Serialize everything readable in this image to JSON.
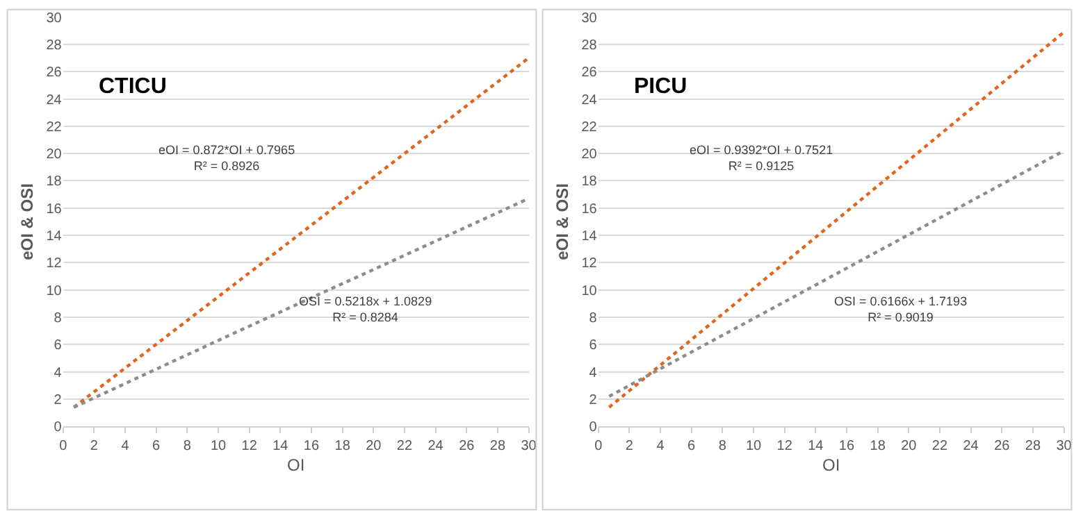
{
  "chart_data": [
    {
      "type": "line",
      "title": "CTICU",
      "xlabel": "OI",
      "ylabel": "eOI & OSI",
      "xlim": [
        0,
        30
      ],
      "ylim": [
        0,
        30
      ],
      "xticks": [
        0,
        2,
        4,
        6,
        8,
        10,
        12,
        14,
        16,
        18,
        20,
        22,
        24,
        26,
        28,
        30
      ],
      "yticks": [
        0,
        2,
        4,
        6,
        8,
        10,
        12,
        14,
        16,
        18,
        20,
        22,
        24,
        26,
        28,
        30
      ],
      "grid": "y",
      "marker": "none",
      "line_style": "dotted",
      "series": [
        {
          "color": "#e0651e",
          "x": [
            0.7,
            10,
            30
          ],
          "values": [
            1.4,
            9.5,
            27.0
          ]
        },
        {
          "color": "#8c8c8c",
          "x": [
            0.7,
            10,
            30
          ],
          "values": [
            1.4,
            6.3,
            16.7
          ]
        }
      ],
      "annotations": [
        "eOI = 0.872*OI + 0.7965\nR² = 0.8926",
        "OSI = 0.5218x + 1.0829\nR² = 0.8284"
      ]
    },
    {
      "type": "line",
      "title": "PICU",
      "xlabel": "OI",
      "ylabel": "eOI & OSI",
      "xlim": [
        0,
        30
      ],
      "ylim": [
        0,
        30
      ],
      "xticks": [
        0,
        2,
        4,
        6,
        8,
        10,
        12,
        14,
        16,
        18,
        20,
        22,
        24,
        26,
        28,
        30
      ],
      "yticks": [
        0,
        2,
        4,
        6,
        8,
        10,
        12,
        14,
        16,
        18,
        20,
        22,
        24,
        26,
        28,
        30
      ],
      "grid": "y",
      "marker": "none",
      "line_style": "dotted",
      "series": [
        {
          "color": "#e0651e",
          "x": [
            0.7,
            10,
            30
          ],
          "values": [
            1.4,
            10.1,
            28.9
          ]
        },
        {
          "color": "#8c8c8c",
          "x": [
            0.7,
            10,
            30
          ],
          "values": [
            2.2,
            7.9,
            20.2
          ]
        }
      ],
      "annotations": [
        "eOI = 0.9392*OI + 0.7521\nR² = 0.9125",
        "OSI = 0.6166x + 1.7193\nR² = 0.9019"
      ]
    }
  ]
}
